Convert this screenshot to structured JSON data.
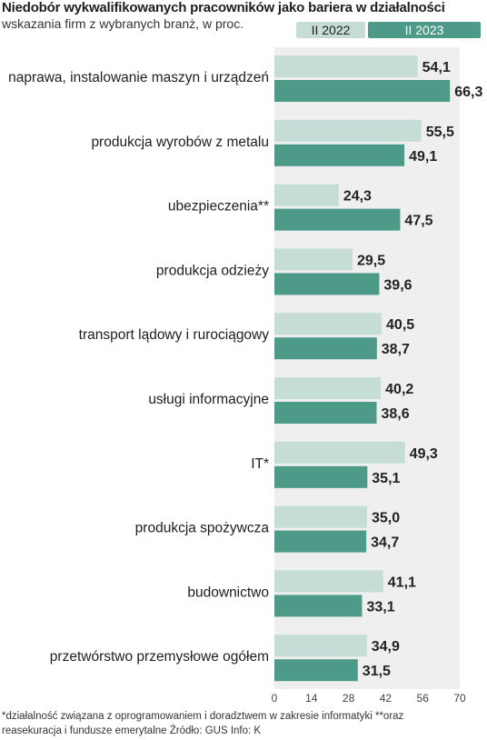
{
  "chart_data": {
    "type": "bar",
    "orientation": "horizontal",
    "title": "Niedobór wykwalifikowanych pracowników jako bariera w działalności",
    "subtitle": "wskazania firm z wybranych branż, w proc.",
    "categories": [
      "naprawa, instalowanie maszyn i urządzeń",
      "produkcja wyrobów z metalu",
      "ubezpieczenia**",
      "produkcja odzieży",
      "transport lądowy i rurociągowy",
      "usługi informacyjne",
      "IT*",
      "produkcja spożywcza",
      "budownictwo",
      "przetwórstwo przemysłowe ogółem"
    ],
    "series": [
      {
        "name": "II 2022",
        "color": "#c5ddd6",
        "values": [
          54.1,
          55.5,
          24.3,
          29.5,
          40.5,
          40.2,
          49.3,
          35.0,
          41.1,
          34.9
        ],
        "labels": [
          "54,1",
          "55,5",
          "24,3",
          "29,5",
          "40,5",
          "40,2",
          "49,3",
          "35,0",
          "41,1",
          "34,9"
        ]
      },
      {
        "name": "II 2023",
        "color": "#4c9a87",
        "values": [
          66.3,
          49.1,
          47.5,
          39.6,
          38.7,
          38.6,
          35.1,
          34.7,
          33.1,
          31.5
        ],
        "labels": [
          "66,3",
          "49,1",
          "47,5",
          "39,6",
          "38,7",
          "38,6",
          "35,1",
          "34,7",
          "33,1",
          "31,5"
        ]
      }
    ],
    "xlim": [
      0,
      70
    ],
    "xticks": [
      "0",
      "14",
      "28",
      "42",
      "56",
      "70"
    ],
    "legend_position": "top-right",
    "grid": false
  },
  "footnote": {
    "line1": "*działalność związana z oprogramowaniem i doradztwem w zakresie informatyki  **oraz",
    "line2": "reasekuracja i fundusze emerytalne   Źródło: GUS   Info: K"
  }
}
